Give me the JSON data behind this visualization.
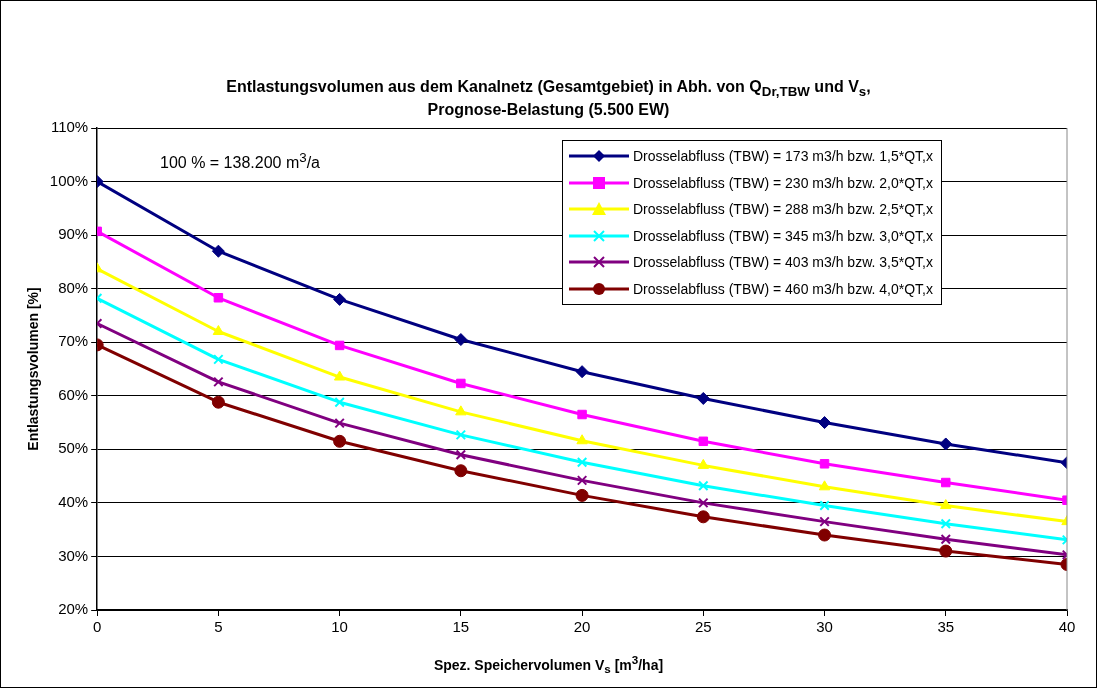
{
  "chart_data": {
    "type": "line",
    "title": "Entlastungsvolumen aus dem Kanalnetz (Gesamtgebiet) in Abh. von Q$_{Dr,TBW}$ und V$_{s}$,",
    "subtitle": "Prognose-Belastung (5.500 EW)",
    "xlabel": "Spez. Speichervolumen V$_{s}$ [m$^{3}$/ha]",
    "ylabel": "Entlastungsvolumen [%]",
    "annotations": [
      "100 % = 138.200  m$^{3}$/a"
    ],
    "x": [
      0,
      5,
      10,
      15,
      20,
      25,
      30,
      35,
      40
    ],
    "xlim": [
      0,
      40
    ],
    "xticks": [
      0,
      5,
      10,
      15,
      20,
      25,
      30,
      35,
      40
    ],
    "ylim": [
      20,
      110
    ],
    "yticks": [
      {
        "value": 20,
        "label": "20%"
      },
      {
        "value": 30,
        "label": "30%"
      },
      {
        "value": 40,
        "label": "40%"
      },
      {
        "value": 50,
        "label": "50%"
      },
      {
        "value": 60,
        "label": "60%"
      },
      {
        "value": 70,
        "label": "70%"
      },
      {
        "value": 80,
        "label": "80%"
      },
      {
        "value": 90,
        "label": "90%"
      },
      {
        "value": 100,
        "label": "100%"
      },
      {
        "value": 110,
        "label": "110%"
      }
    ],
    "grid": "y",
    "legend": "top right",
    "line_style": "solid",
    "series": [
      {
        "name": "Drosselabfluss (TBW) = 173 m3/h bzw. 1,5*QT,x",
        "color": "#000080",
        "marker": "diamond",
        "values": [
          100,
          87,
          78,
          70.5,
          64.5,
          59.5,
          55,
          51,
          47.5
        ]
      },
      {
        "name": "Drosselabfluss (TBW) = 230 m3/h bzw. 2,0*QT,x",
        "color": "#ff00ff",
        "marker": "square",
        "values": [
          90.7,
          78.3,
          69.4,
          62.3,
          56.5,
          51.5,
          47.3,
          43.8,
          40.5
        ]
      },
      {
        "name": "Drosselabfluss (TBW) = 288 m3/h bzw. 2,5*QT,x",
        "color": "#ffff00",
        "marker": "triangle",
        "values": [
          83.7,
          72,
          63.5,
          57,
          51.6,
          47,
          43,
          39.5,
          36.5
        ]
      },
      {
        "name": "Drosselabfluss (TBW) = 345 m3/h bzw. 3,0*QT,x",
        "color": "#00ffff",
        "marker": "cross",
        "values": [
          78.2,
          66.8,
          58.8,
          52.7,
          47.6,
          43.2,
          39.5,
          36.1,
          33.1
        ]
      },
      {
        "name": "Drosselabfluss (TBW) = 403 m3/h bzw. 3,5*QT,x",
        "color": "#800080",
        "marker": "cross",
        "values": [
          73.5,
          62.6,
          54.9,
          49,
          44.2,
          40,
          36.5,
          33.2,
          30.3
        ]
      },
      {
        "name": "Drosselabfluss (TBW) = 460 m3/h bzw. 4,0*QT,x",
        "color": "#800000",
        "marker": "circle",
        "values": [
          69.5,
          58.8,
          51.5,
          46,
          41.4,
          37.4,
          34,
          31,
          28.5
        ]
      }
    ]
  }
}
